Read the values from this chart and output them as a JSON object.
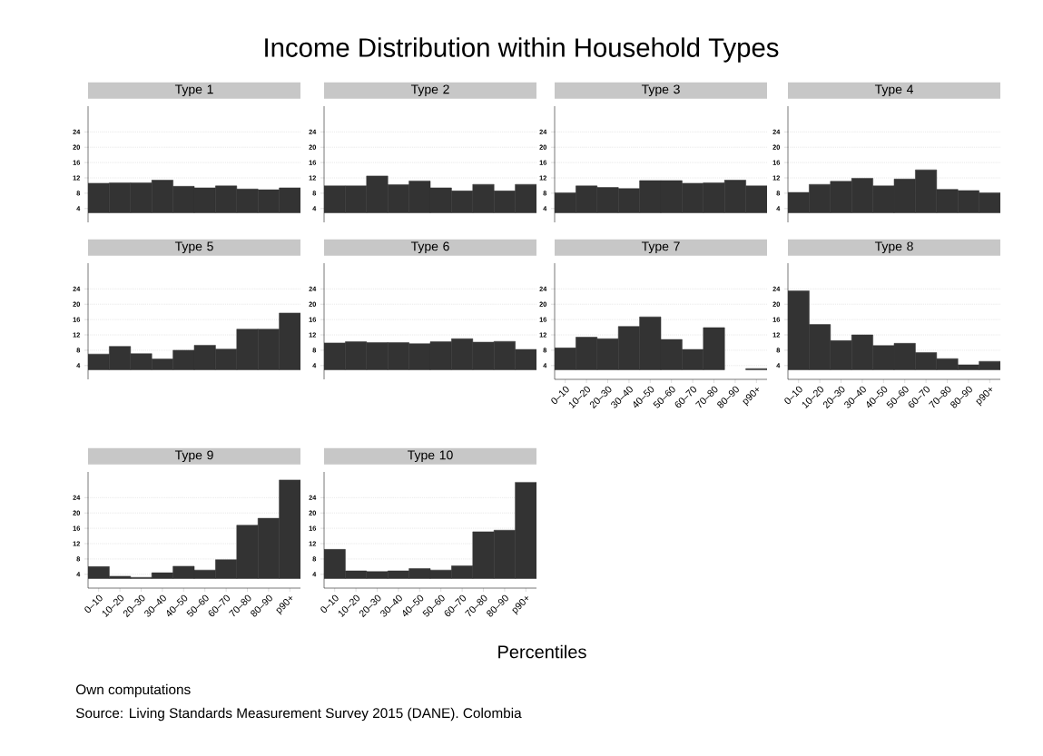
{
  "chart_data": [
    {
      "type": "bar",
      "title": "Type 1",
      "categories": [
        null,
        null,
        null,
        null,
        null,
        null,
        null,
        null,
        null,
        null
      ],
      "base": [
        2.9,
        2.9,
        2.9,
        2.9,
        2.9,
        2.9,
        2.9,
        2.9,
        2.9,
        2.9
      ],
      "values": [
        7.7,
        7.8,
        7.8,
        8.5,
        6.9,
        6.5,
        7.0,
        6.2,
        6.0,
        6.5
      ],
      "color": "#333333",
      "ylim": [
        0.4,
        30.7
      ],
      "yticks": [
        4,
        8,
        12,
        16,
        20,
        24
      ],
      "grid": "y",
      "tick_labels": "y"
    },
    {
      "type": "bar",
      "title": "Type 2",
      "categories": [
        null,
        null,
        null,
        null,
        null,
        null,
        null,
        null,
        null,
        null
      ],
      "base": [
        2.9,
        2.9,
        2.9,
        2.9,
        2.9,
        2.9,
        2.9,
        2.9,
        2.9,
        2.9
      ],
      "values": [
        7.0,
        7.0,
        9.6,
        7.3,
        8.3,
        6.5,
        5.7,
        7.4,
        5.7,
        7.4
      ],
      "color": "#333333",
      "ylim": [
        0.4,
        30.7
      ],
      "yticks": [
        4,
        8,
        12,
        16,
        20,
        24
      ],
      "grid": "y",
      "tick_labels": "y"
    },
    {
      "type": "bar",
      "title": "Type 3",
      "categories": [
        null,
        null,
        null,
        null,
        null,
        null,
        null,
        null,
        null,
        null
      ],
      "base": [
        2.9,
        2.9,
        2.9,
        2.9,
        2.9,
        2.9,
        2.9,
        2.9,
        2.9,
        2.9
      ],
      "values": [
        5.2,
        7.0,
        6.6,
        6.3,
        8.4,
        8.4,
        7.7,
        7.8,
        8.5,
        7.0
      ],
      "color": "#333333",
      "ylim": [
        0.4,
        30.7
      ],
      "yticks": [
        4,
        8,
        12,
        16,
        20,
        24
      ],
      "grid": "y",
      "tick_labels": "y"
    },
    {
      "type": "bar",
      "title": "Type 4",
      "categories": [
        null,
        null,
        null,
        null,
        null,
        null,
        null,
        null,
        null,
        null
      ],
      "base": [
        2.9,
        2.9,
        2.9,
        2.9,
        2.9,
        2.9,
        2.9,
        2.9,
        2.9,
        2.9
      ],
      "values": [
        5.3,
        7.4,
        8.2,
        9.0,
        7.0,
        8.8,
        11.2,
        6.1,
        5.8,
        5.2
      ],
      "color": "#333333",
      "ylim": [
        0.4,
        30.7
      ],
      "yticks": [
        4,
        8,
        12,
        16,
        20,
        24
      ],
      "grid": "y",
      "tick_labels": "y"
    },
    {
      "type": "bar",
      "title": "Type 5",
      "categories": [
        null,
        null,
        null,
        null,
        null,
        null,
        null,
        null,
        null,
        null
      ],
      "base": [
        2.9,
        2.9,
        2.9,
        2.9,
        2.9,
        2.9,
        2.9,
        2.9,
        2.9,
        2.9
      ],
      "values": [
        4.1,
        6.1,
        4.2,
        2.8,
        5.1,
        6.4,
        5.4,
        10.6,
        10.6,
        14.8
      ],
      "color": "#333333",
      "ylim": [
        0.4,
        30.7
      ],
      "yticks": [
        4,
        8,
        12,
        16,
        20,
        24
      ],
      "grid": "y",
      "tick_labels": "y"
    },
    {
      "type": "bar",
      "title": "Type 6",
      "categories": [
        null,
        null,
        null,
        null,
        null,
        null,
        null,
        null,
        null,
        null
      ],
      "base": [
        2.9,
        2.9,
        2.9,
        2.9,
        2.9,
        2.9,
        2.9,
        2.9,
        2.9,
        2.9
      ],
      "values": [
        7.0,
        7.3,
        7.1,
        7.1,
        6.8,
        7.3,
        8.1,
        7.2,
        7.4,
        5.3
      ],
      "color": "#333333",
      "ylim": [
        0.4,
        30.7
      ],
      "yticks": [
        4,
        8,
        12,
        16,
        20,
        24
      ],
      "grid": "y",
      "tick_labels": "y"
    },
    {
      "type": "bar",
      "title": "Type 7",
      "categories": [
        "0–10",
        "10–20",
        "20–30",
        "30–40",
        "40–50",
        "50–60",
        "60–70",
        "70–80",
        "80–90",
        "p90+"
      ],
      "base": [
        2.9,
        2.9,
        2.9,
        2.9,
        2.9,
        2.9,
        2.9,
        2.9,
        null,
        2.9
      ],
      "values": [
        5.7,
        8.5,
        8.1,
        11.3,
        13.8,
        7.9,
        5.3,
        11.0,
        null,
        0.3
      ],
      "color": "#333333",
      "ylim": [
        0.4,
        30.7
      ],
      "yticks": [
        4,
        8,
        12,
        16,
        20,
        24
      ],
      "grid": "y"
    },
    {
      "type": "bar",
      "title": "Type 8",
      "categories": [
        "0–10",
        "10–20",
        "20–30",
        "30–40",
        "40–50",
        "50–60",
        "60–70",
        "70–80",
        "80–90",
        "p90+"
      ],
      "base": [
        2.9,
        2.9,
        2.9,
        2.9,
        2.9,
        2.9,
        2.9,
        2.9,
        2.9,
        2.9
      ],
      "values": [
        20.6,
        11.8,
        7.6,
        9.1,
        6.3,
        6.9,
        4.5,
        2.9,
        1.3,
        2.2
      ],
      "color": "#333333",
      "ylim": [
        0.4,
        30.7
      ],
      "yticks": [
        4,
        8,
        12,
        16,
        20,
        24
      ],
      "grid": "y"
    },
    {
      "type": "bar",
      "title": "Type 9",
      "categories": [
        "0–10",
        "10–20",
        "20–30",
        "30–40",
        "40–50",
        "50–60",
        "60–70",
        "70–80",
        "80–90",
        "p90+"
      ],
      "base": [
        2.9,
        2.9,
        2.9,
        2.9,
        2.9,
        2.9,
        2.9,
        2.9,
        2.9,
        2.9
      ],
      "values": [
        3.1,
        0.6,
        0.3,
        1.5,
        3.2,
        2.2,
        4.9,
        13.9,
        15.7,
        25.7
      ],
      "color": "#333333",
      "ylim": [
        0.4,
        30.7
      ],
      "yticks": [
        4,
        8,
        12,
        16,
        20,
        24
      ],
      "grid": "y"
    },
    {
      "type": "bar",
      "title": "Type 10",
      "categories": [
        "0–10",
        "10–20",
        "20–30",
        "30–40",
        "40–50",
        "50–60",
        "60–70",
        "70–80",
        "80–90",
        "p90+"
      ],
      "base": [
        2.9,
        2.9,
        2.9,
        2.9,
        2.9,
        2.9,
        2.9,
        2.9,
        2.9,
        2.9
      ],
      "values": [
        7.6,
        2.0,
        1.8,
        2.0,
        2.6,
        2.2,
        3.3,
        12.2,
        12.6,
        25.1
      ],
      "color": "#333333",
      "ylim": [
        0.4,
        30.7
      ],
      "yticks": [
        4,
        8,
        12,
        16,
        20,
        24
      ],
      "grid": "y"
    },
    {
      "type": "other",
      "title": "Income Distribution within Household Types",
      "xlabel": "Percentiles",
      "annotations": [
        "Own computations",
        "Source: Living Standards Measurement Survey 2015 (DANE). Colombia"
      ]
    }
  ]
}
